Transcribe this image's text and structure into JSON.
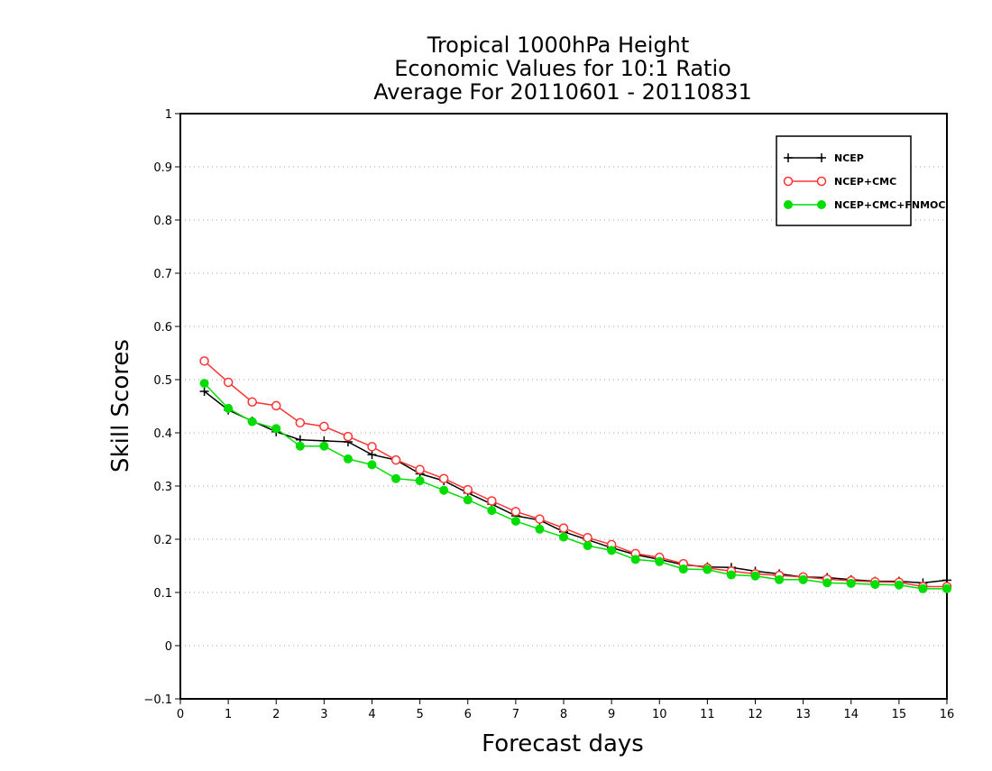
{
  "chart_data": {
    "type": "line",
    "title": [
      "Tropical 1000hPa Height",
      "Economic Values for 10:1 Ratio",
      "Average For 20110601 - 20110831"
    ],
    "xlabel": "Forecast days",
    "ylabel": "Skill Scores",
    "xlim": [
      0,
      16
    ],
    "ylim": [
      -0.1,
      1
    ],
    "xticks": [
      0,
      1,
      2,
      3,
      4,
      5,
      6,
      7,
      8,
      9,
      10,
      11,
      12,
      13,
      14,
      15,
      16
    ],
    "yticks": [
      -0.1,
      0,
      0.1,
      0.2,
      0.3,
      0.4,
      0.5,
      0.6,
      0.7,
      0.8,
      0.9,
      1
    ],
    "ytick_labels": [
      "−0.1",
      "0",
      "0.1",
      "0.2",
      "0.3",
      "0.4",
      "0.5",
      "0.6",
      "0.7",
      "0.8",
      "0.9",
      "1"
    ],
    "grid": "horizontal dotted",
    "legend_position": "top-right",
    "x": [
      0.5,
      1.0,
      1.5,
      2.0,
      2.5,
      3.0,
      3.5,
      4.0,
      4.5,
      5.0,
      5.5,
      6.0,
      6.5,
      7.0,
      7.5,
      8.0,
      8.5,
      9.0,
      9.5,
      10.0,
      10.5,
      11.0,
      11.5,
      12.0,
      12.5,
      13.0,
      13.5,
      14.0,
      14.5,
      15.0,
      15.5,
      16.0
    ],
    "series": [
      {
        "name": "NCEP",
        "color": "#000000",
        "marker": "plus",
        "values": [
          0.478,
          0.443,
          0.422,
          0.402,
          0.387,
          0.385,
          0.383,
          0.359,
          0.349,
          0.323,
          0.31,
          0.287,
          0.266,
          0.244,
          0.236,
          0.214,
          0.199,
          0.184,
          0.171,
          0.162,
          0.152,
          0.148,
          0.147,
          0.14,
          0.135,
          0.129,
          0.128,
          0.124,
          0.121,
          0.121,
          0.118,
          0.123
        ]
      },
      {
        "name": "NCEP+CMC",
        "color": "#ff3333",
        "marker": "open-circle",
        "values": [
          0.535,
          0.495,
          0.458,
          0.451,
          0.419,
          0.412,
          0.393,
          0.374,
          0.349,
          0.331,
          0.314,
          0.293,
          0.272,
          0.252,
          0.238,
          0.221,
          0.203,
          0.19,
          0.173,
          0.166,
          0.154,
          0.146,
          0.14,
          0.135,
          0.132,
          0.129,
          0.125,
          0.122,
          0.12,
          0.119,
          0.111,
          0.111
        ]
      },
      {
        "name": "NCEP+CMC+FNMOC",
        "color": "#00dd00",
        "marker": "filled-circle",
        "values": [
          0.493,
          0.446,
          0.421,
          0.408,
          0.375,
          0.375,
          0.351,
          0.34,
          0.314,
          0.31,
          0.292,
          0.274,
          0.254,
          0.234,
          0.219,
          0.204,
          0.188,
          0.179,
          0.162,
          0.158,
          0.144,
          0.143,
          0.133,
          0.131,
          0.124,
          0.124,
          0.118,
          0.117,
          0.115,
          0.114,
          0.107,
          0.107
        ]
      }
    ]
  }
}
